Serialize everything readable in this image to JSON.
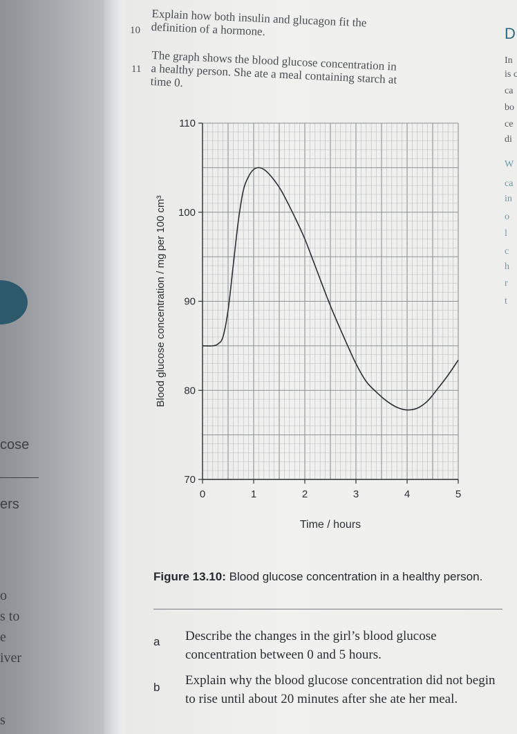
{
  "left_page": {
    "fragments": [
      "cose",
      "ers",
      "o",
      "s to",
      "e",
      "iver",
      "s"
    ]
  },
  "questions": [
    {
      "number": "10",
      "line1": "Explain how both insulin and glucagon fit the",
      "line2": "definition of a hormone."
    },
    {
      "number": "11",
      "line1": "The graph shows the blood glucose concentration in",
      "line2": "a healthy person. She ate a meal containing starch at",
      "line3": "time 0."
    }
  ],
  "right_page": {
    "fragments": [
      "D",
      "In",
      "is c",
      "ca",
      "bo",
      "ce",
      "di",
      "W",
      "ca",
      "in",
      "o",
      "l",
      "c",
      "h",
      "r",
      "t"
    ]
  },
  "chart_data": {
    "type": "line",
    "xlabel": "Time / hours",
    "ylabel": "Blood glucose concentration / mg per 100 cm³",
    "xlim": [
      0,
      5
    ],
    "ylim": [
      70,
      110
    ],
    "xticks": [
      0,
      1,
      2,
      3,
      4,
      5
    ],
    "yticks": [
      70,
      80,
      90,
      100,
      110
    ],
    "grid": true,
    "series": [
      {
        "x": [
          0,
          0.2,
          0.3,
          0.4,
          0.5,
          0.6,
          0.7,
          0.8,
          0.9,
          1.0,
          1.1,
          1.2,
          1.3,
          1.4,
          1.5,
          1.6,
          1.8,
          2.0,
          2.2,
          2.5,
          2.8,
          3.0,
          3.2,
          3.4,
          3.6,
          3.8,
          4.0,
          4.2,
          4.4,
          4.6,
          4.8,
          5.0
        ],
        "y": [
          85,
          85,
          85.2,
          86,
          89,
          94,
          99,
          102.5,
          104,
          104.8,
          105,
          104.8,
          104.3,
          103.6,
          102.8,
          101.8,
          99.5,
          97,
          94,
          89.5,
          85.5,
          83,
          81,
          79.8,
          78.8,
          78.1,
          77.8,
          78,
          78.8,
          80.2,
          81.7,
          83.4
        ]
      }
    ]
  },
  "caption": {
    "label": "Figure 13.10:",
    "text": "Blood glucose concentration in a healthy person."
  },
  "parts": [
    {
      "letter": "a",
      "text": "Describe the changes in the girl’s blood glucose concentration between 0 and 5 hours."
    },
    {
      "letter": "b",
      "text": "Explain why the blood glucose concentration did not begin to rise until about 20 minutes after she ate her meal."
    }
  ]
}
